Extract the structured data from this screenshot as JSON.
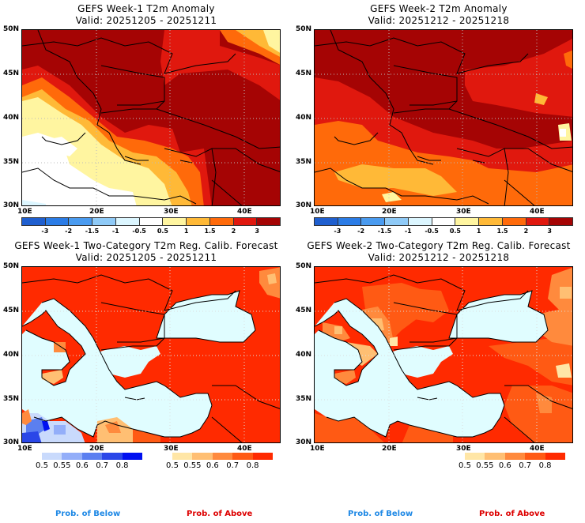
{
  "panels": [
    {
      "title": "GEFS Week-1 T2m Anomaly",
      "valid": "Valid: 20251205 - 20251211",
      "kind": "anomaly",
      "week": 1
    },
    {
      "title": "GEFS Week-2 T2m Anomaly",
      "valid": "Valid: 20251212 - 20251218",
      "kind": "anomaly",
      "week": 2
    },
    {
      "title": "GEFS Week-1 Two-Category T2m Reg. Calib. Forecast",
      "valid": "Valid: 20251205 - 20251211",
      "kind": "probability",
      "week": 1
    },
    {
      "title": "GEFS Week-2 Two-Category T2m Reg. Calib. Forecast",
      "valid": "Valid: 20251212 - 20251218",
      "kind": "probability",
      "week": 2
    }
  ],
  "axes": {
    "lat_labels": [
      "50N",
      "45N",
      "40N",
      "35N",
      "30N"
    ],
    "lon_labels": [
      "10E",
      "20E",
      "30E",
      "40E"
    ],
    "lat_range": [
      30,
      50
    ],
    "lon_range": [
      10,
      45
    ]
  },
  "anomaly_colorbar": {
    "labels": [
      "-3",
      "-2",
      "-1.5",
      "-1",
      "-0.5",
      "0.5",
      "1",
      "1.5",
      "2",
      "3"
    ],
    "colors": [
      "#1f5fcf",
      "#2b7ce6",
      "#4a9bf0",
      "#8fcaf7",
      "#dcf6ff",
      "#ffffff",
      "#fff5a0",
      "#ffb937",
      "#ff6a0a",
      "#e0180e",
      "#a50404"
    ]
  },
  "below_colorbar": {
    "labels": [
      "0.5",
      "0.55",
      "0.6",
      "0.7",
      "0.8"
    ],
    "colors": [
      "#c9dafc",
      "#93aef9",
      "#5b7ff0",
      "#2a47e8",
      "#0010f0"
    ]
  },
  "above_colorbar": {
    "labels": [
      "0.5",
      "0.55",
      "0.6",
      "0.7",
      "0.8"
    ],
    "colors": [
      "#ffe6a6",
      "#ffbf73",
      "#ff8a3d",
      "#ff5a14",
      "#ff2a00"
    ]
  },
  "footer": {
    "below_label": "Prob. of Below",
    "above_label": "Prob. of Above",
    "below_color": "#1e88e5",
    "above_color": "#dd0000"
  },
  "sea_color": "#e0fdff"
}
